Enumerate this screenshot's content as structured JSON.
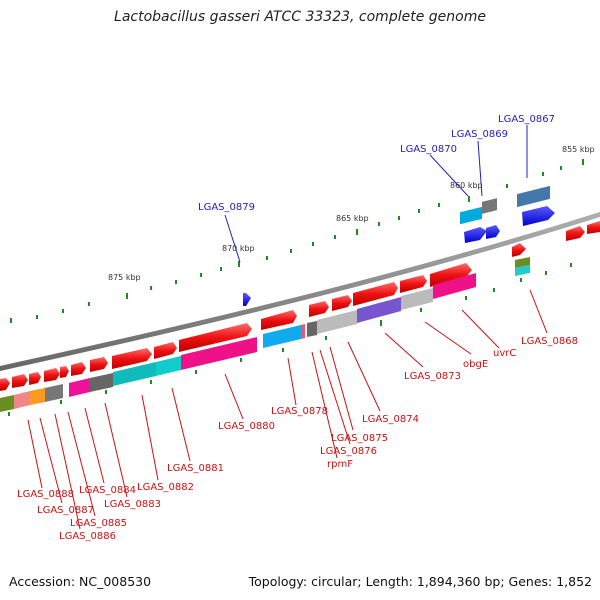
{
  "title": "Lactobacillus gasseri ATCC 33323, complete genome",
  "footer": {
    "accession": "Accession: NC_008530",
    "topology": "Topology: circular; Length: 1,894,360 bp; Genes: 1,852"
  },
  "ticks": [
    "875 kbp",
    "870 kbp",
    "865 kbp",
    "860 kbp",
    "855 kbp"
  ],
  "labels_blue": [
    "LGAS_0879",
    "LGAS_0870",
    "LGAS_0869",
    "LGAS_0867"
  ],
  "labels_red": [
    "LGAS_0868",
    "uvrC",
    "obgE",
    "LGAS_0873",
    "LGAS_0874",
    "LGAS_0875",
    "LGAS_0876",
    "rpmF",
    "LGAS_0878",
    "LGAS_0880",
    "LGAS_0881",
    "LGAS_0882",
    "LGAS_0883",
    "LGAS_0884",
    "LGAS_0885",
    "LGAS_0886",
    "LGAS_0887",
    "LGAS_0888"
  ],
  "colors": {
    "forward_gene": "#ee1111",
    "reverse_gene": "#1111ee",
    "backbone": "#888888",
    "tick": "#228822",
    "label_blue": "#2222bb",
    "label_red": "#cc1111"
  }
}
